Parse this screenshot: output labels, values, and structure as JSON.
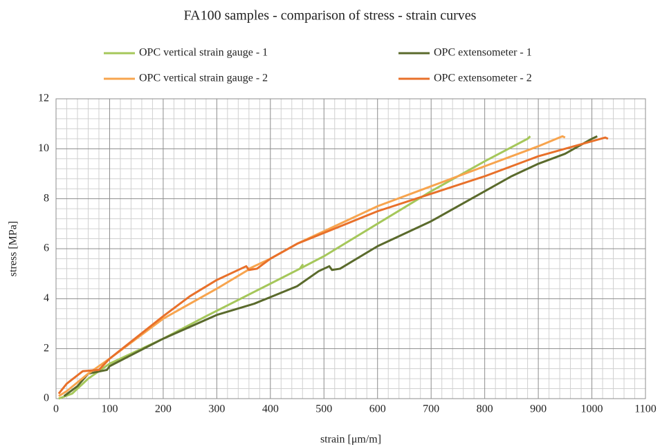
{
  "chart_data": {
    "type": "line",
    "title": "FA100 samples - comparison of stress - strain curves",
    "x_label": "strain [μm/m]",
    "y_label": "stress [MPa]",
    "xlim": [
      0,
      1100
    ],
    "xticks": [
      0,
      100,
      200,
      300,
      400,
      500,
      600,
      700,
      800,
      900,
      1000,
      1100
    ],
    "ylim": [
      0,
      12
    ],
    "yticks": [
      0,
      2,
      4,
      6,
      8,
      10,
      12
    ],
    "grid": true,
    "minor_grid": true,
    "series": [
      {
        "name": "OPC vertical strain gauge - 1",
        "color": "#a5c75a",
        "x": [
          5,
          30,
          60,
          100,
          200,
          280,
          400,
          455,
          460,
          455,
          500,
          600,
          700,
          800,
          880,
          885
        ],
        "values": [
          0,
          0.2,
          0.8,
          1.4,
          2.4,
          3.3,
          4.6,
          5.2,
          5.35,
          5.2,
          5.7,
          7.0,
          8.3,
          9.5,
          10.4,
          10.5
        ]
      },
      {
        "name": "OPC extensometer - 1",
        "color": "#5a6a2c",
        "x": [
          15,
          40,
          60,
          95,
          100,
          200,
          300,
          370,
          450,
          490,
          510,
          515,
          530,
          600,
          700,
          800,
          850,
          900,
          950,
          1000,
          1010
        ],
        "values": [
          0.1,
          0.5,
          1.0,
          1.15,
          1.3,
          2.4,
          3.35,
          3.8,
          4.5,
          5.1,
          5.3,
          5.15,
          5.2,
          6.1,
          7.1,
          8.3,
          8.9,
          9.4,
          9.8,
          10.4,
          10.5
        ]
      },
      {
        "name": "OPC vertical strain gauge - 2",
        "color": "#f7a44e",
        "x": [
          5,
          20,
          60,
          100,
          200,
          300,
          370,
          360,
          400,
          450,
          600,
          700,
          800,
          900,
          945,
          950
        ],
        "values": [
          0.1,
          0.3,
          1.0,
          1.6,
          3.2,
          4.4,
          5.3,
          5.2,
          5.6,
          6.2,
          7.7,
          8.5,
          9.3,
          10.1,
          10.5,
          10.45
        ]
      },
      {
        "name": "OPC extensometer - 2",
        "color": "#e8702a",
        "x": [
          5,
          20,
          50,
          80,
          100,
          200,
          250,
          300,
          355,
          360,
          375,
          400,
          450,
          600,
          700,
          800,
          900,
          1000,
          1025,
          1030
        ],
        "values": [
          0.2,
          0.6,
          1.1,
          1.15,
          1.6,
          3.3,
          4.1,
          4.75,
          5.3,
          5.15,
          5.2,
          5.6,
          6.2,
          7.5,
          8.2,
          8.9,
          9.7,
          10.3,
          10.45,
          10.4
        ]
      }
    ]
  }
}
